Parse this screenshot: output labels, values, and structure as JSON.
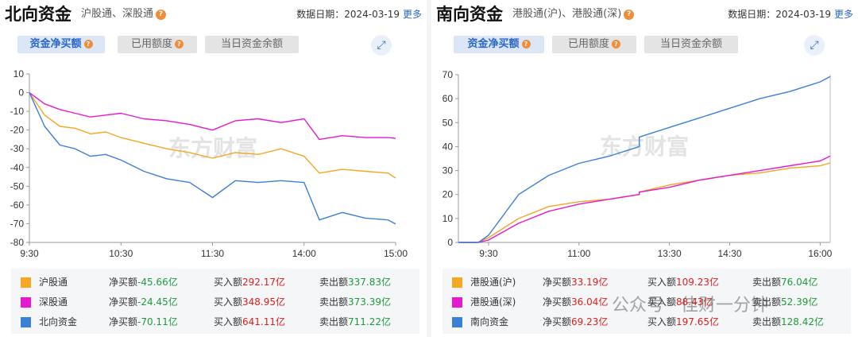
{
  "colors": {
    "orange": "#f5a623",
    "magenta": "#e619d2",
    "blue": "#3a7fd8"
  },
  "north": {
    "title": "北向资金",
    "subtitle": "沪股通、深股通",
    "date_label": "数据日期：2024-03-19",
    "more": "更多",
    "tabs": [
      "资金净买额",
      "已用额度",
      "当日资金余额"
    ],
    "legend": [
      {
        "name": "沪股通",
        "net_label": "净买额",
        "net": "-45.66亿",
        "buy_label": "买入额",
        "buy": "292.17亿",
        "sell_label": "卖出额",
        "sell": "337.83亿"
      },
      {
        "name": "深股通",
        "net_label": "净买额",
        "net": "-24.45亿",
        "buy_label": "买入额",
        "buy": "348.95亿",
        "sell_label": "卖出额",
        "sell": "373.39亿"
      },
      {
        "name": "北向资金",
        "net_label": "净买额",
        "net": "-70.11亿",
        "buy_label": "买入额",
        "buy": "641.11亿",
        "sell_label": "卖出额",
        "sell": "711.22亿"
      }
    ]
  },
  "south": {
    "title": "南向资金",
    "subtitle": "港股通(沪)、港股通(深)",
    "date_label": "数据日期：2024-03-19",
    "more": "更多",
    "tabs": [
      "资金净买额",
      "已用额度",
      "当日资金余额"
    ],
    "legend": [
      {
        "name": "港股通(沪)",
        "net_label": "净买额",
        "net": "33.19亿",
        "buy_label": "买入额",
        "buy": "109.23亿",
        "sell_label": "卖出额",
        "sell": "76.04亿"
      },
      {
        "name": "港股通(深)",
        "net_label": "净买额",
        "net": "36.04亿",
        "buy_label": "买入额",
        "buy": "88.43亿",
        "sell_label": "卖出额",
        "sell": "52.39亿"
      },
      {
        "name": "南向资金",
        "net_label": "净买额",
        "net": "69.23亿",
        "buy_label": "买入额",
        "buy": "197.65亿",
        "sell_label": "卖出额",
        "sell": "128.42亿"
      }
    ]
  },
  "watermarks": {
    "chart": "东方财富",
    "wechat": "公众号 · 佳财一分钟"
  },
  "chart_data": [
    {
      "type": "line",
      "ylim": [
        -80,
        10
      ],
      "yticks": [
        10,
        0,
        -10,
        -20,
        -30,
        -40,
        -50,
        -60,
        -70,
        -80
      ],
      "xticks": [
        "9:30",
        "10:30",
        "11:30",
        "14:00",
        "15:00"
      ],
      "grid": false,
      "series": [
        {
          "name": "沪股通",
          "x": [
            "9:30",
            "9:40",
            "9:50",
            "10:00",
            "10:10",
            "10:20",
            "10:30",
            "10:45",
            "11:00",
            "11:15",
            "11:30",
            "13:15",
            "13:30",
            "13:45",
            "14:00",
            "14:10",
            "14:25",
            "14:40",
            "14:55",
            "15:00"
          ],
          "values": [
            0,
            -12,
            -18,
            -19,
            -22,
            -21,
            -24,
            -27,
            -30,
            -32,
            -35,
            -32,
            -33,
            -30,
            -34,
            -43,
            -41,
            -42,
            -43,
            -45.66
          ]
        },
        {
          "name": "深股通",
          "x": [
            "9:30",
            "9:40",
            "9:50",
            "10:00",
            "10:10",
            "10:20",
            "10:30",
            "10:45",
            "11:00",
            "11:15",
            "11:30",
            "13:15",
            "13:30",
            "13:45",
            "14:00",
            "14:10",
            "14:25",
            "14:40",
            "14:55",
            "15:00"
          ],
          "values": [
            0,
            -6,
            -9,
            -11,
            -13,
            -12,
            -11,
            -14,
            -15,
            -17,
            -20,
            -15,
            -14,
            -16,
            -14,
            -25,
            -23,
            -24,
            -24,
            -24.45
          ]
        },
        {
          "name": "北向资金",
          "x": [
            "9:30",
            "9:40",
            "9:50",
            "10:00",
            "10:10",
            "10:20",
            "10:30",
            "10:45",
            "11:00",
            "11:15",
            "11:30",
            "13:15",
            "13:30",
            "13:45",
            "14:00",
            "14:10",
            "14:25",
            "14:40",
            "14:55",
            "15:00"
          ],
          "values": [
            0,
            -18,
            -28,
            -30,
            -34,
            -33,
            -36,
            -42,
            -46,
            -48,
            -56,
            -47,
            -48,
            -47,
            -48,
            -68,
            -64,
            -67,
            -68,
            -70.11
          ]
        }
      ]
    },
    {
      "type": "line",
      "ylim": [
        0,
        70
      ],
      "yticks": [
        70,
        60,
        50,
        40,
        30,
        20,
        10,
        0
      ],
      "xticks": [
        "9:30",
        "11:00",
        "13:30",
        "14:30",
        "16:00"
      ],
      "grid": false,
      "series": [
        {
          "name": "港股通(沪)",
          "x": [
            "9:00",
            "9:20",
            "9:30",
            "10:00",
            "10:30",
            "11:00",
            "11:30",
            "12:00",
            "13:00",
            "13:30",
            "14:00",
            "14:30",
            "15:00",
            "15:30",
            "16:00",
            "16:10"
          ],
          "values": [
            0,
            0,
            2,
            10,
            15,
            17,
            18,
            20,
            21,
            24,
            26,
            28,
            29,
            31,
            32,
            33.19
          ]
        },
        {
          "name": "港股通(深)",
          "x": [
            "9:00",
            "9:20",
            "9:30",
            "10:00",
            "10:30",
            "11:00",
            "11:30",
            "12:00",
            "13:00",
            "13:30",
            "14:00",
            "14:30",
            "15:00",
            "15:30",
            "16:00",
            "16:10"
          ],
          "values": [
            0,
            0,
            1,
            8,
            13,
            16,
            18,
            20,
            21,
            23,
            26,
            28,
            30,
            32,
            34,
            36.04
          ]
        },
        {
          "name": "南向资金",
          "x": [
            "9:00",
            "9:20",
            "9:30",
            "10:00",
            "10:30",
            "11:00",
            "11:30",
            "12:00",
            "13:00",
            "13:30",
            "14:00",
            "14:30",
            "15:00",
            "15:30",
            "16:00",
            "16:10"
          ],
          "values": [
            0,
            0,
            3,
            20,
            28,
            33,
            36,
            40,
            44,
            48,
            52,
            56,
            60,
            63,
            67,
            69.23
          ]
        }
      ]
    }
  ]
}
